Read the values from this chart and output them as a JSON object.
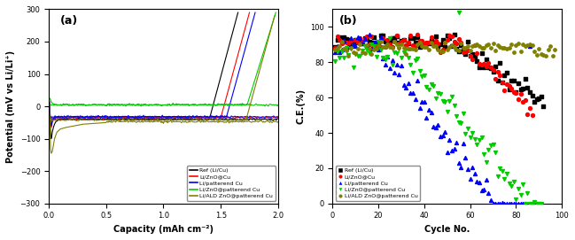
{
  "panel_a": {
    "title": "(a)",
    "xlabel": "Capacity (mAh cm⁻²)",
    "ylabel": "Potential (mV vs Li/Li⁺)",
    "xlim": [
      0,
      2.0
    ],
    "ylim": [
      -300,
      300
    ],
    "yticks": [
      -300,
      -200,
      -100,
      0,
      100,
      200,
      300
    ],
    "xticks": [
      0.0,
      0.5,
      1.0,
      1.5,
      2.0
    ],
    "colors": {
      "ref": "#000000",
      "znoCu": "#ff0000",
      "patterned": "#0000ff",
      "znoPatternCu": "#00cc00",
      "aldZnoPattern": "#808000"
    },
    "legend_labels": [
      "Ref (Li/Cu)",
      "Li/ZnO@Cu",
      "Li/patterend Cu",
      "Li/ZnO@patterend Cu",
      "Li/ALD ZnO@patterend Cu"
    ]
  },
  "panel_b": {
    "title": "(b)",
    "xlabel": "Cycle No.",
    "ylabel": "C.E.(%)",
    "xlim": [
      0,
      100
    ],
    "ylim": [
      0,
      110
    ],
    "yticks": [
      0,
      20,
      40,
      60,
      80,
      100
    ],
    "xticks": [
      0,
      20,
      40,
      60,
      80,
      100
    ],
    "colors": {
      "ref": "#000000",
      "znoCu": "#ff0000",
      "patterned": "#0000ff",
      "znoPatternCu": "#00cc00",
      "aldZnoPattern": "#808000"
    },
    "legend_labels": [
      "Ref (Li/Cu)",
      "Li/ZnO@Cu",
      "Li/patterend Cu",
      "Li/ZnO@patterend Cu",
      "Li/ALD ZnO@patterend Cu"
    ],
    "markers": {
      "ref": "s",
      "znoCu": "o",
      "patterned": "^",
      "znoPatternCu": "v",
      "aldZnoPattern": "o"
    }
  }
}
